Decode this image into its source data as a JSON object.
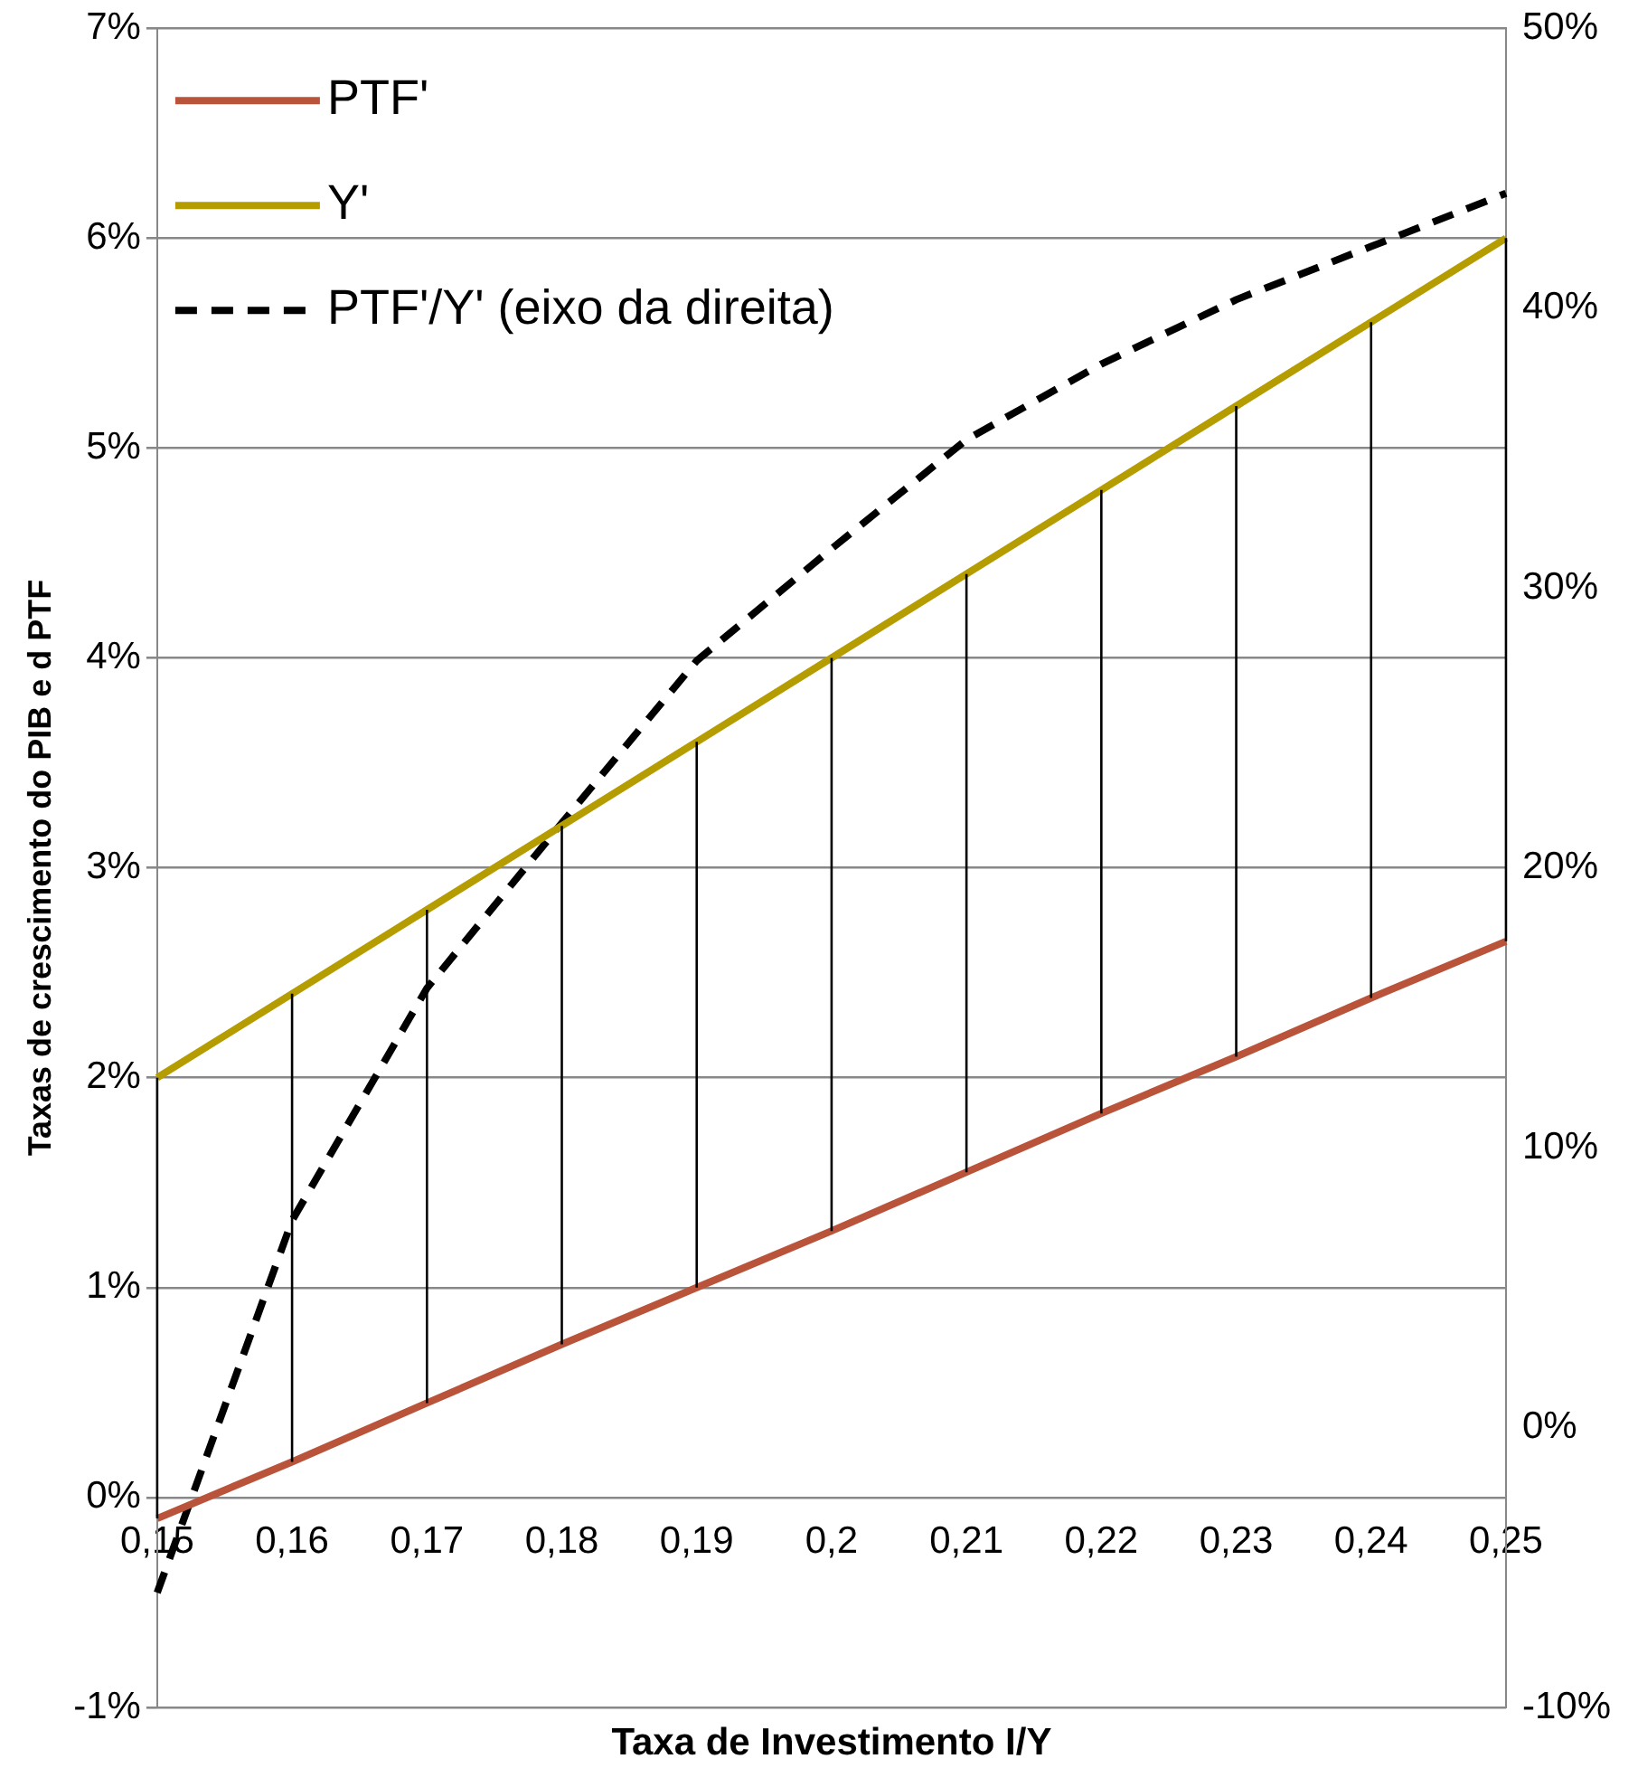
{
  "chart_data": {
    "type": "line",
    "xlabel": "Taxa de Investimento I/Y",
    "ylabel": "Taxas de crescimento do PIB e d PTF",
    "categories": [
      "0,15",
      "0,16",
      "0,17",
      "0,18",
      "0,19",
      "0,2",
      "0,21",
      "0,22",
      "0,23",
      "0,24",
      "0,25"
    ],
    "series": [
      {
        "name": "PTF'",
        "color": "#b9533a",
        "line_style": "solid",
        "values": [
          -0.1,
          0.17,
          0.45,
          0.73,
          1.0,
          1.27,
          1.55,
          1.83,
          2.1,
          2.38,
          2.65
        ]
      },
      {
        "name": "Y'",
        "color": "#b59c00",
        "line_style": "solid",
        "values": [
          2.0,
          2.4,
          2.8,
          3.2,
          3.6,
          4.0,
          4.4,
          4.8,
          5.2,
          5.6,
          6.0
        ],
        "errors": [
          [
            -0.1,
            2.0
          ],
          [
            0.17,
            2.4
          ],
          [
            0.45,
            2.8
          ],
          [
            0.73,
            3.2
          ],
          [
            1.0,
            3.6
          ],
          [
            1.27,
            4.0
          ],
          [
            1.55,
            4.4
          ],
          [
            1.83,
            4.8
          ],
          [
            2.1,
            5.2
          ],
          [
            2.38,
            5.6
          ],
          [
            2.65,
            6.0
          ]
        ]
      },
      {
        "name": "PTF'/Y' (eixo da direita)",
        "color": "#000000",
        "line_style": "dashed",
        "axis": "y2",
        "values": [
          -5.9,
          7.4,
          15.7,
          21.6,
          27.4,
          31.4,
          35.3,
          38.0,
          40.3,
          42.2,
          44.1
        ]
      }
    ],
    "ylim": [
      -1,
      7
    ],
    "yticks": [
      {
        "value": -1,
        "label": "-1%"
      },
      {
        "value": 0,
        "label": "0%"
      },
      {
        "value": 1,
        "label": "1%"
      },
      {
        "value": 2,
        "label": "2%"
      },
      {
        "value": 3,
        "label": "3%"
      },
      {
        "value": 4,
        "label": "4%"
      },
      {
        "value": 5,
        "label": "5%"
      },
      {
        "value": 6,
        "label": "6%"
      },
      {
        "value": 7,
        "label": "7%"
      }
    ],
    "y2lim": [
      -10,
      50
    ],
    "y2ticks": [
      {
        "value": -10,
        "label": "-10%"
      },
      {
        "value": 0,
        "label": "0%"
      },
      {
        "value": 10,
        "label": "10%"
      },
      {
        "value": 20,
        "label": "20%"
      },
      {
        "value": 30,
        "label": "30%"
      },
      {
        "value": 40,
        "label": "40%"
      },
      {
        "value": 50,
        "label": "50%"
      }
    ],
    "grid": "y",
    "legend": "top left",
    "marker": "none"
  }
}
